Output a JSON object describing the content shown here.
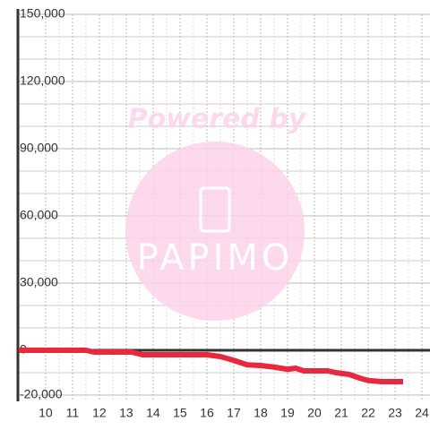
{
  "chart_data": {
    "type": "line",
    "watermark": {
      "line1": "Powered by",
      "line2": "PAPIMO"
    },
    "x": [
      9,
      11.5,
      11.8,
      13.2,
      13.6,
      16.0,
      16.5,
      17.0,
      17.5,
      18.0,
      18.5,
      19.0,
      19.3,
      19.6,
      20.5,
      20.8,
      21.3,
      21.7,
      22.0,
      22.5,
      23.3
    ],
    "series": [
      {
        "color": "#e8283c",
        "values": [
          0,
          0,
          -800,
          -800,
          -2000,
          -2000,
          -2800,
          -4500,
          -6500,
          -6800,
          -7500,
          -8500,
          -8000,
          -9200,
          -9200,
          -10000,
          -10800,
          -12500,
          -13500,
          -14000,
          -14000
        ]
      }
    ],
    "xlim": [
      8.97,
      24.3
    ],
    "xticks": [
      10,
      11,
      12,
      13,
      14,
      15,
      16,
      17,
      18,
      19,
      20,
      21,
      22,
      23,
      24
    ],
    "ylim": [
      -20000,
      150000
    ],
    "yticks": [
      {
        "value": -20000,
        "label": "-20,000"
      },
      {
        "value": 0,
        "label": "0"
      },
      {
        "value": 30000,
        "label": "30,000"
      },
      {
        "value": 60000,
        "label": "60,000"
      },
      {
        "value": 90000,
        "label": "90,000"
      },
      {
        "value": 120000,
        "label": "120,000"
      },
      {
        "value": 150000,
        "label": "150,000"
      }
    ],
    "grid": true
  }
}
